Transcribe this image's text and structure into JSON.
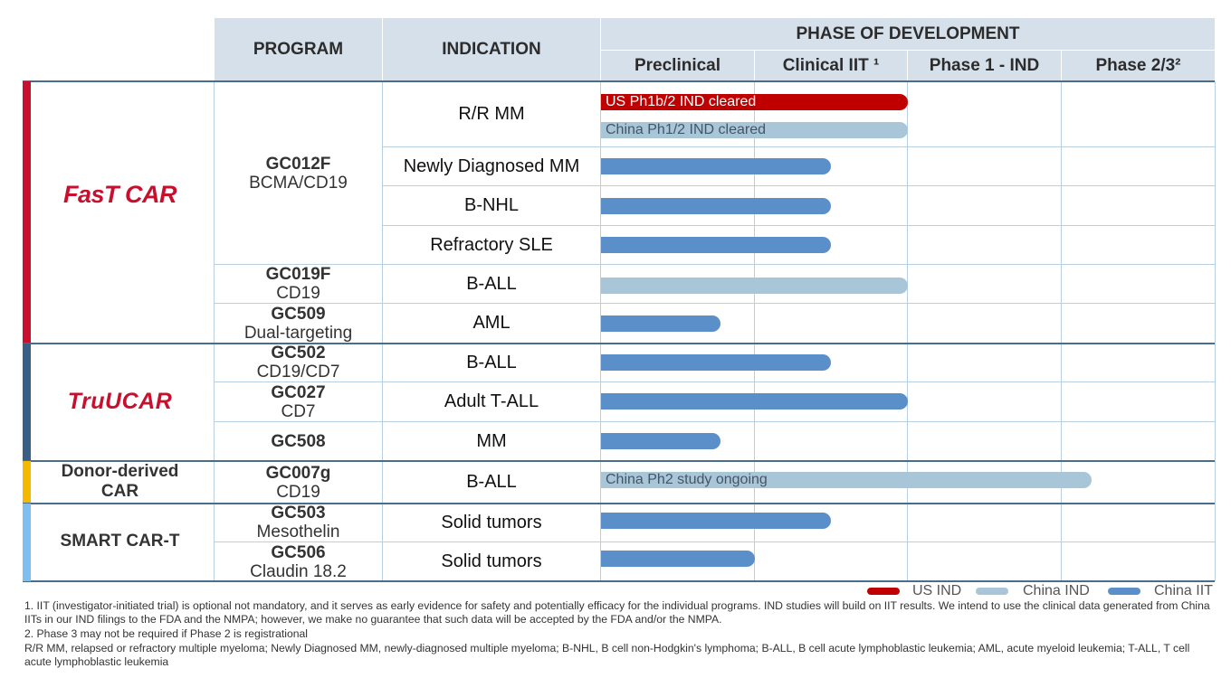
{
  "header": {
    "program": "PROGRAM",
    "indication": "INDICATION",
    "phase_of_development": "PHASE OF DEVELOPMENT",
    "phases": [
      "Preclinical",
      "Clinical IIT ¹",
      "Phase 1 - IND",
      "Phase 2/3²"
    ]
  },
  "platforms": [
    {
      "name": "FasT CAR",
      "logo_text": "FasT CAR",
      "color": "#c8102e"
    },
    {
      "name": "TruUCAR",
      "logo_text": "TruUCAR",
      "color": "#3a5f84"
    },
    {
      "name": "Donor-derived CAR",
      "logo_text": "Donor-derived CAR",
      "color": "#f5b800"
    },
    {
      "name": "SMART CAR-T",
      "logo_text": "SMART CAR-T",
      "color": "#7fbfef"
    }
  ],
  "programs": [
    {
      "code": "GC012F",
      "target": "BCMA/CD19"
    },
    {
      "code": "GC019F",
      "target": "CD19"
    },
    {
      "code": "GC509",
      "target": "Dual-targeting"
    },
    {
      "code": "GC502",
      "target": "CD19/CD7"
    },
    {
      "code": "GC027",
      "target": "CD7"
    },
    {
      "code": "GC508",
      "target": ""
    },
    {
      "code": "GC007g",
      "target": "CD19"
    },
    {
      "code": "GC503",
      "target": "Mesothelin"
    },
    {
      "code": "GC506",
      "target": "Claudin 18.2"
    }
  ],
  "indications": [
    "R/R MM",
    "Newly Diagnosed MM",
    "B-NHL",
    "Refractory SLE",
    "B-ALL",
    "AML",
    "B-ALL",
    "Adult T-ALL",
    "MM",
    "B-ALL",
    "Solid tumors",
    "Solid tumors"
  ],
  "chart_data": {
    "type": "bar",
    "orientation": "horizontal",
    "title": "PHASE OF DEVELOPMENT",
    "x_stages": [
      "Preclinical",
      "Clinical IIT ¹",
      "Phase 1 - IND",
      "Phase 2/3²"
    ],
    "x_unit": "stages (0 = start of Preclinical, 4 = end of Phase 2/3)",
    "xlim": [
      0,
      4
    ],
    "series": [
      {
        "name": "US IND",
        "color": "#c00000"
      },
      {
        "name": "China IND",
        "color": "#a9c6d8"
      },
      {
        "name": "China IIT",
        "color": "#5b8fc9"
      }
    ],
    "bars": [
      {
        "program": "GC012F",
        "indication": "R/R MM",
        "series": "US IND",
        "value": 2.0,
        "label": "US Ph1b/2 IND cleared"
      },
      {
        "program": "GC012F",
        "indication": "R/R MM",
        "series": "China IND",
        "value": 2.0,
        "label": "China Ph1/2 IND cleared"
      },
      {
        "program": "GC012F",
        "indication": "Newly Diagnosed MM",
        "series": "China IIT",
        "value": 1.5,
        "label": ""
      },
      {
        "program": "GC012F",
        "indication": "B-NHL",
        "series": "China IIT",
        "value": 1.5,
        "label": ""
      },
      {
        "program": "GC012F",
        "indication": "Refractory SLE",
        "series": "China IIT",
        "value": 1.5,
        "label": ""
      },
      {
        "program": "GC019F",
        "indication": "B-ALL",
        "series": "China IND",
        "value": 2.0,
        "label": ""
      },
      {
        "program": "GC509",
        "indication": "AML",
        "series": "China IIT",
        "value": 0.78,
        "label": ""
      },
      {
        "program": "GC502",
        "indication": "B-ALL",
        "series": "China IIT",
        "value": 1.5,
        "label": ""
      },
      {
        "program": "GC027",
        "indication": "Adult T-ALL",
        "series": "China IIT",
        "value": 2.0,
        "label": ""
      },
      {
        "program": "GC508",
        "indication": "MM",
        "series": "China IIT",
        "value": 0.78,
        "label": ""
      },
      {
        "program": "GC007g",
        "indication": "B-ALL",
        "series": "China IND",
        "value": 3.2,
        "label": "China Ph2 study ongoing"
      },
      {
        "program": "GC503",
        "indication": "Solid tumors",
        "series": "China IIT",
        "value": 1.5,
        "label": ""
      },
      {
        "program": "GC506",
        "indication": "Solid tumors",
        "series": "China IIT",
        "value": 1.0,
        "label": ""
      }
    ],
    "legend": [
      "US IND",
      "China IND",
      "China IIT"
    ],
    "legend_position": "bottom-right"
  },
  "footnotes": [
    "1.  IIT (investigator-initiated trial) is optional not mandatory, and it serves as early evidence for safety and potentially efficacy for the individual programs. IND studies will build on IIT results. We intend to use the clinical data generated from China IITs in our IND filings to the FDA and the NMPA; however, we make no guarantee that such data will be accepted by the FDA and/or the NMPA.",
    "2.  Phase 3 may not be required if Phase 2 is registrational",
    "R/R MM, relapsed or refractory multiple myeloma; Newly Diagnosed MM, newly-diagnosed multiple myeloma; B-NHL, B cell non-Hodgkin's lymphoma; B-ALL, B cell acute lymphoblastic leukemia; AML, acute myeloid leukemia; T-ALL, T cell acute lymphoblastic leukemia"
  ]
}
